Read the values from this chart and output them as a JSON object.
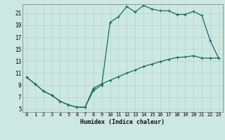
{
  "xlabel": "Humidex (Indice chaleur)",
  "ylabel": "",
  "bg_color": "#cce8e0",
  "grid_color": "#b0d4cc",
  "line_color": "#1a6b5e",
  "xlim": [
    -0.5,
    23.5
  ],
  "ylim": [
    4.5,
    22.5
  ],
  "xticks": [
    0,
    1,
    2,
    3,
    4,
    5,
    6,
    7,
    8,
    9,
    10,
    11,
    12,
    13,
    14,
    15,
    16,
    17,
    18,
    19,
    20,
    21,
    22,
    23
  ],
  "yticks": [
    5,
    7,
    9,
    11,
    13,
    15,
    17,
    19,
    21
  ],
  "curve1_x": [
    0,
    1,
    2,
    3,
    4,
    5,
    6,
    7,
    8,
    9,
    10,
    11,
    12,
    13,
    14,
    15,
    16,
    17,
    18,
    19,
    20,
    21,
    22,
    23
  ],
  "curve1_y": [
    10.3,
    9.2,
    8.0,
    7.3,
    6.3,
    5.7,
    5.3,
    5.3,
    8.1,
    9.0,
    19.5,
    20.4,
    22.1,
    21.2,
    22.3,
    21.7,
    21.4,
    21.4,
    20.8,
    20.8,
    21.3,
    20.6,
    16.4,
    13.5
  ],
  "curve2_x": [
    0,
    1,
    2,
    3,
    4,
    5,
    6,
    7,
    8,
    9,
    10,
    11,
    12,
    13,
    14,
    15,
    16,
    17,
    18,
    19,
    20,
    21,
    22,
    23
  ],
  "curve2_y": [
    10.3,
    9.2,
    8.0,
    7.3,
    6.3,
    5.7,
    5.3,
    5.3,
    8.5,
    9.2,
    9.8,
    10.4,
    11.0,
    11.5,
    12.1,
    12.5,
    12.9,
    13.3,
    13.6,
    13.7,
    13.9,
    13.5,
    13.5,
    13.5
  ]
}
